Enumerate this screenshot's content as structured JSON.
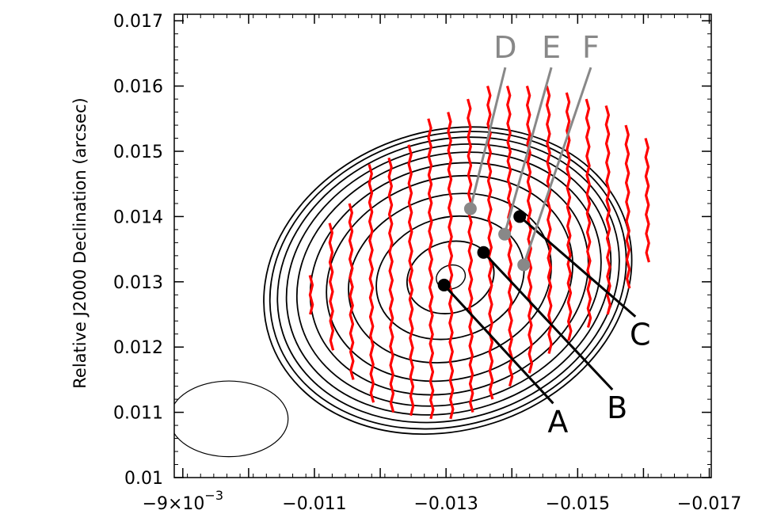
{
  "chart_data": {
    "type": "contour",
    "ylabel": "Relative J2000 Declination (arcsec)",
    "xlabel": "",
    "x_axis": {
      "reversed": true,
      "lim": [
        -0.00887,
        -0.01703
      ],
      "major_ticks": [
        {
          "value": -0.009,
          "label": "−9×10",
          "exp": "−3"
        },
        {
          "value": -0.011,
          "label": "−0.011"
        },
        {
          "value": -0.013,
          "label": "−0.013"
        },
        {
          "value": -0.015,
          "label": "−0.015"
        },
        {
          "value": -0.017,
          "label": "−0.017"
        }
      ],
      "minor_ticks": [
        -0.01,
        -0.012,
        -0.014,
        -0.016
      ]
    },
    "y_axis": {
      "lim": [
        0.01,
        0.0171
      ],
      "ticks": [
        {
          "value": 0.01,
          "label": "0.01"
        },
        {
          "value": 0.011,
          "label": "0.011"
        },
        {
          "value": 0.012,
          "label": "0.012"
        },
        {
          "value": 0.013,
          "label": "0.013"
        },
        {
          "value": 0.014,
          "label": "0.014"
        },
        {
          "value": 0.015,
          "label": "0.015"
        },
        {
          "value": 0.016,
          "label": "0.016"
        },
        {
          "value": 0.017,
          "label": "0.017"
        }
      ]
    },
    "contours": {
      "center": [
        -0.013,
        0.013
      ],
      "semi_x": [
        0.0002,
        0.0006,
        0.00102,
        0.0014,
        0.0017,
        0.00192,
        0.0021,
        0.00224,
        0.00236,
        0.00246,
        0.00254
      ],
      "semi_y": [
        0.0002,
        0.0006,
        0.00102,
        0.0014,
        0.0017,
        0.00192,
        0.0021,
        0.00224,
        0.00236,
        0.00246,
        0.00254
      ],
      "outer_bounds": {
        "x": [
          -0.0107,
          -0.0163
        ],
        "y": [
          0.0105,
          0.016
        ]
      }
    },
    "beam": {
      "center": [
        -0.0097,
        0.0109
      ],
      "radius_x": 0.0009,
      "radius_y": 0.00058
    },
    "vectors": {
      "color": "#ff0000",
      "columns": [
        {
          "x": -0.01095,
          "y": [
            0.0125,
            0.0131
          ]
        },
        {
          "x": -0.01125,
          "y": [
            0.01195,
            0.0139
          ]
        },
        {
          "x": -0.01155,
          "y": [
            0.0115,
            0.0142
          ]
        },
        {
          "x": -0.01185,
          "y": [
            0.01115,
            0.0148
          ]
        },
        {
          "x": -0.01215,
          "y": [
            0.011,
            0.0149
          ]
        },
        {
          "x": -0.01245,
          "y": [
            0.01095,
            0.0151
          ]
        },
        {
          "x": -0.01275,
          "y": [
            0.0109,
            0.0155
          ]
        },
        {
          "x": -0.01305,
          "y": [
            0.0109,
            0.0156
          ]
        },
        {
          "x": -0.01335,
          "y": [
            0.011,
            0.0158
          ]
        },
        {
          "x": -0.01365,
          "y": [
            0.0112,
            0.016
          ]
        },
        {
          "x": -0.01395,
          "y": [
            0.0114,
            0.016
          ]
        },
        {
          "x": -0.01425,
          "y": [
            0.0116,
            0.016
          ]
        },
        {
          "x": -0.01455,
          "y": [
            0.0119,
            0.016
          ]
        },
        {
          "x": -0.01485,
          "y": [
            0.0121,
            0.0159
          ]
        },
        {
          "x": -0.01515,
          "y": [
            0.0123,
            0.0158
          ]
        },
        {
          "x": -0.01545,
          "y": [
            0.0125,
            0.0157
          ]
        },
        {
          "x": -0.01575,
          "y": [
            0.0129,
            0.0154
          ]
        },
        {
          "x": -0.01605,
          "y": [
            0.0133,
            0.0152
          ]
        }
      ]
    },
    "markers": [
      {
        "label": "A",
        "point": [
          -0.01297,
          0.01295
        ],
        "label_at": [
          -0.0147,
          0.01087
        ],
        "color": "#000000",
        "label_color": "#000000"
      },
      {
        "label": "B",
        "point": [
          -0.01357,
          0.01345
        ],
        "label_at": [
          -0.0156,
          0.01108
        ],
        "color": "#000000",
        "label_color": "#000000"
      },
      {
        "label": "C",
        "point": [
          -0.01412,
          0.014
        ],
        "label_at": [
          -0.01595,
          0.0122
        ],
        "color": "#000000",
        "label_color": "#000000"
      },
      {
        "label": "D",
        "point": [
          -0.01337,
          0.01412
        ],
        "label_at": [
          -0.0139,
          0.0166
        ],
        "color": "#888888",
        "label_color": "#888888"
      },
      {
        "label": "E",
        "point": [
          -0.01389,
          0.01373
        ],
        "label_at": [
          -0.0146,
          0.0166
        ],
        "color": "#888888",
        "label_color": "#888888"
      },
      {
        "label": "F",
        "point": [
          -0.01418,
          0.01326
        ],
        "label_at": [
          -0.0152,
          0.0166
        ],
        "color": "#888888",
        "label_color": "#888888"
      }
    ]
  }
}
